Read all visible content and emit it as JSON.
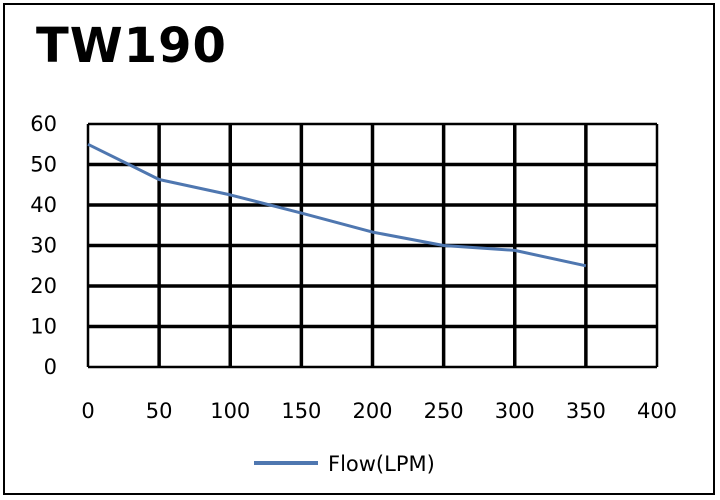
{
  "chart_data": {
    "type": "line",
    "title": "TW190",
    "xlabel": "",
    "ylabel": "",
    "x_ticks": [
      0,
      50,
      100,
      150,
      200,
      250,
      300,
      350,
      400
    ],
    "y_ticks": [
      0,
      10,
      20,
      30,
      40,
      50,
      60
    ],
    "xlim": [
      0,
      400
    ],
    "ylim": [
      0,
      60
    ],
    "grid": true,
    "legend_position": "bottom",
    "series": [
      {
        "name": "Flow(LPM)",
        "color": "#4f77b0",
        "x": [
          0,
          50,
          100,
          150,
          200,
          250,
          300,
          350
        ],
        "y": [
          55,
          46.3,
          42.5,
          38,
          33.3,
          30,
          28.8,
          25
        ]
      }
    ]
  }
}
